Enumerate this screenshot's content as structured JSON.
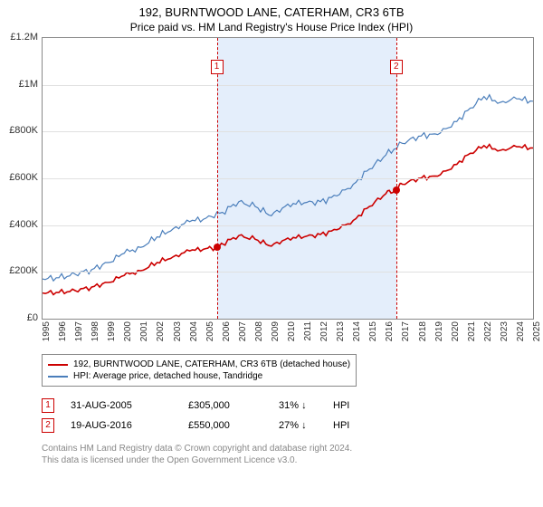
{
  "title": "192, BURNTWOOD LANE, CATERHAM, CR3 6TB",
  "subtitle": "Price paid vs. HM Land Registry's House Price Index (HPI)",
  "chart": {
    "type": "line",
    "y": {
      "min": 0,
      "max": 1200000,
      "ticks": [
        0,
        200000,
        400000,
        600000,
        800000,
        1000000,
        1200000
      ],
      "tick_labels": [
        "£0",
        "£200K",
        "£400K",
        "£600K",
        "£800K",
        "£1M",
        "£1.2M"
      ],
      "label_fontsize": 11,
      "grid_color": "#e0e0e0"
    },
    "x": {
      "min": 1995,
      "max": 2025,
      "ticks": [
        1995,
        1996,
        1997,
        1998,
        1999,
        2000,
        2001,
        2002,
        2003,
        2004,
        2005,
        2006,
        2007,
        2008,
        2009,
        2010,
        2011,
        2012,
        2013,
        2014,
        2015,
        2016,
        2017,
        2018,
        2019,
        2020,
        2021,
        2022,
        2023,
        2024,
        2025
      ],
      "label_fontsize": 10
    },
    "highlight_band": {
      "from": 2005.66,
      "to": 2016.63,
      "color": "#e1ecfb"
    },
    "series_property": {
      "label": "192, BURNTWOOD LANE, CATERHAM, CR3 6TB (detached house)",
      "color": "#cc0000",
      "line_width": 1.6,
      "data": [
        [
          1995,
          110000
        ],
        [
          1996,
          112000
        ],
        [
          1997,
          120000
        ],
        [
          1998,
          135000
        ],
        [
          1999,
          155000
        ],
        [
          2000,
          185000
        ],
        [
          2001,
          205000
        ],
        [
          2002,
          240000
        ],
        [
          2003,
          265000
        ],
        [
          2004,
          290000
        ],
        [
          2005,
          300000
        ],
        [
          2005.66,
          305000
        ],
        [
          2006,
          320000
        ],
        [
          2007,
          355000
        ],
        [
          2008,
          340000
        ],
        [
          2009,
          310000
        ],
        [
          2010,
          345000
        ],
        [
          2011,
          350000
        ],
        [
          2012,
          360000
        ],
        [
          2013,
          380000
        ],
        [
          2014,
          420000
        ],
        [
          2015,
          480000
        ],
        [
          2016,
          535000
        ],
        [
          2016.63,
          550000
        ],
        [
          2017,
          575000
        ],
        [
          2018,
          600000
        ],
        [
          2019,
          610000
        ],
        [
          2020,
          640000
        ],
        [
          2021,
          700000
        ],
        [
          2022,
          740000
        ],
        [
          2023,
          720000
        ],
        [
          2024,
          735000
        ],
        [
          2025,
          730000
        ]
      ]
    },
    "series_hpi": {
      "label": "HPI: Average price, detached house, Tandridge",
      "color": "#4a7ebb",
      "line_width": 1.2,
      "data": [
        [
          1995,
          170000
        ],
        [
          1996,
          175000
        ],
        [
          1997,
          190000
        ],
        [
          1998,
          210000
        ],
        [
          1999,
          240000
        ],
        [
          2000,
          280000
        ],
        [
          2001,
          305000
        ],
        [
          2002,
          350000
        ],
        [
          2003,
          385000
        ],
        [
          2004,
          415000
        ],
        [
          2005,
          430000
        ],
        [
          2006,
          455000
        ],
        [
          2007,
          500000
        ],
        [
          2008,
          480000
        ],
        [
          2009,
          440000
        ],
        [
          2010,
          490000
        ],
        [
          2011,
          495000
        ],
        [
          2012,
          500000
        ],
        [
          2013,
          525000
        ],
        [
          2014,
          575000
        ],
        [
          2015,
          640000
        ],
        [
          2016,
          700000
        ],
        [
          2017,
          750000
        ],
        [
          2018,
          780000
        ],
        [
          2019,
          790000
        ],
        [
          2020,
          820000
        ],
        [
          2021,
          890000
        ],
        [
          2022,
          950000
        ],
        [
          2023,
          925000
        ],
        [
          2024,
          940000
        ],
        [
          2025,
          930000
        ]
      ]
    },
    "events": [
      {
        "num": "1",
        "year": 2005.66,
        "price_y": 305000
      },
      {
        "num": "2",
        "year": 2016.63,
        "price_y": 550000
      }
    ],
    "background_color": "#ffffff",
    "border_color": "#888888"
  },
  "legend": {
    "items": [
      {
        "label_ref": "chart.series_property.label",
        "color_ref": "#cc0000"
      },
      {
        "label_ref": "chart.series_hpi.label",
        "color_ref": "#4a7ebb"
      }
    ]
  },
  "events_table": [
    {
      "num": "1",
      "date": "31-AUG-2005",
      "price": "£305,000",
      "pct": "31%",
      "arrow": "↓",
      "hpi": "HPI"
    },
    {
      "num": "2",
      "date": "19-AUG-2016",
      "price": "£550,000",
      "pct": "27%",
      "arrow": "↓",
      "hpi": "HPI"
    }
  ],
  "footer": {
    "line1": "Contains HM Land Registry data © Crown copyright and database right 2024.",
    "line2": "This data is licensed under the Open Government Licence v3.0."
  }
}
